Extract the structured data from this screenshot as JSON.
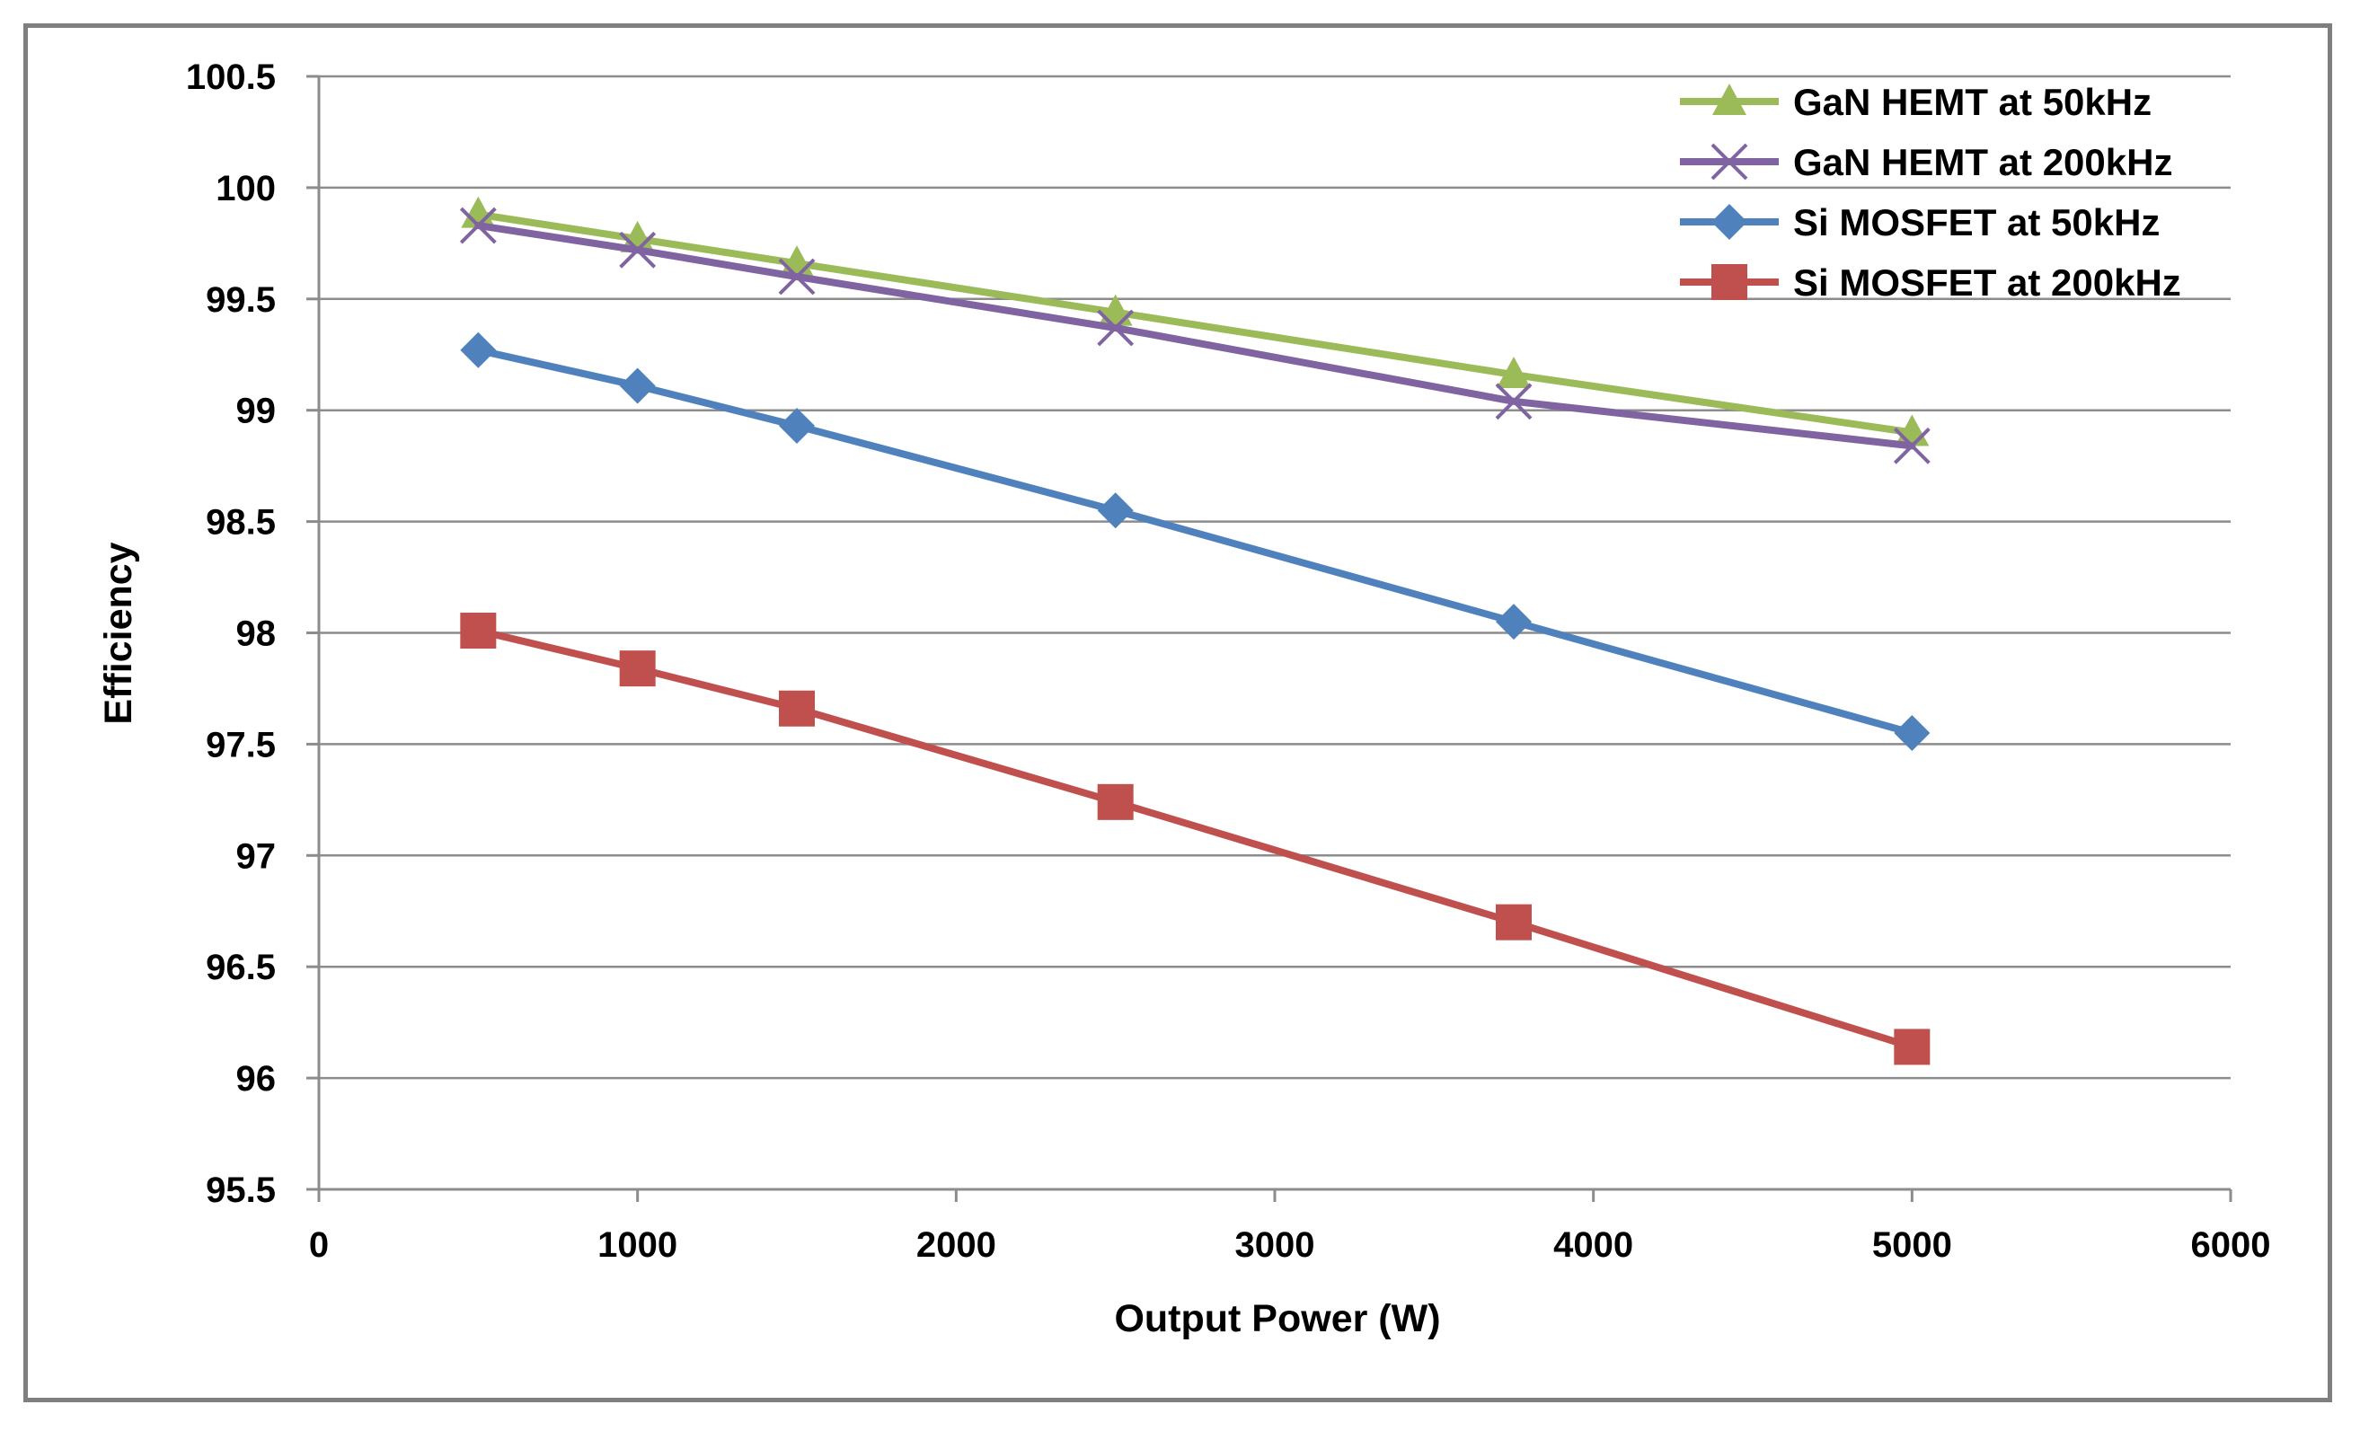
{
  "chart_data": {
    "type": "line",
    "title": "",
    "xlabel": "Output Power (W)",
    "ylabel": "Efficiency",
    "xlim": [
      0,
      6000
    ],
    "ylim": [
      95.5,
      100.5
    ],
    "xticks": [
      0,
      1000,
      2000,
      3000,
      4000,
      5000,
      6000
    ],
    "xtick_labels": [
      "0",
      "1000",
      "2000",
      "3000",
      "4000",
      "5000",
      "6000"
    ],
    "yticks": [
      95.5,
      96,
      96.5,
      97,
      97.5,
      98,
      98.5,
      99,
      99.5,
      100,
      100.5
    ],
    "ytick_labels": [
      "95.5",
      "96",
      "96.5",
      "97",
      "97.5",
      "98",
      "98.5",
      "99",
      "99.5",
      "100",
      "100.5"
    ],
    "grid": "horizontal",
    "legend_position": "top-right",
    "x": [
      500,
      1000,
      1500,
      2500,
      3750,
      5000
    ],
    "series": [
      {
        "name": "GaN HEMT at 50kHz",
        "color": "#9bbb59",
        "marker": "triangle",
        "values": [
          99.88,
          99.77,
          99.66,
          99.44,
          99.16,
          98.9
        ]
      },
      {
        "name": "GaN HEMT at 200kHz",
        "color": "#8064a2",
        "marker": "x",
        "values": [
          99.83,
          99.72,
          99.6,
          99.37,
          99.04,
          98.84
        ]
      },
      {
        "name": "Si MOSFET at 50kHz",
        "color": "#4f81bd",
        "marker": "diamond",
        "values": [
          99.27,
          99.11,
          98.93,
          98.55,
          98.05,
          97.55
        ]
      },
      {
        "name": "Si MOSFET at 200kHz",
        "color": "#c0504d",
        "marker": "square",
        "values": [
          98.01,
          97.84,
          97.66,
          97.24,
          96.7,
          96.14
        ]
      }
    ]
  }
}
